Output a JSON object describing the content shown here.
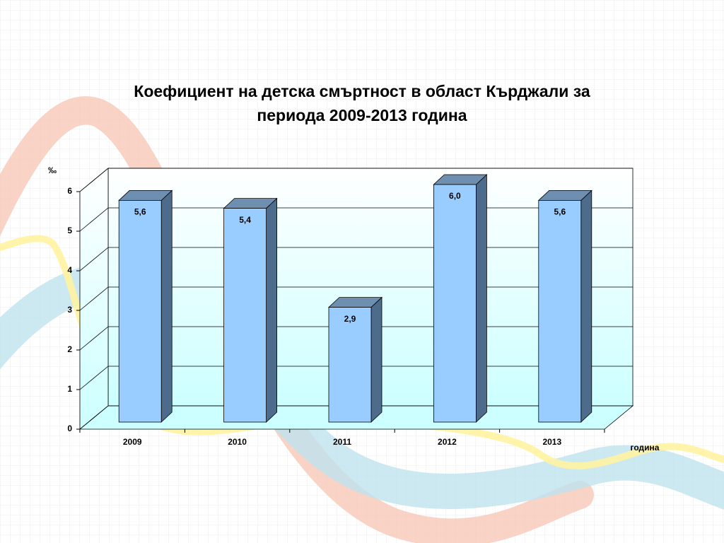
{
  "chart_data": {
    "type": "bar3d",
    "title": "Коефициент на детска смъртност в област Кърджали за периода 2009-2013 година",
    "y_label": "‰",
    "x_label": "година",
    "categories": [
      "2009",
      "2010",
      "2011",
      "2012",
      "2013"
    ],
    "values": [
      5.6,
      5.4,
      2.9,
      6.0,
      5.6
    ],
    "value_labels": [
      "5,6",
      "5,4",
      "2,9",
      "6,0",
      "5,6"
    ],
    "color": "#99ccff",
    "ylim": [
      0,
      6
    ],
    "yticks": [
      0,
      1,
      2,
      3,
      4,
      5,
      6
    ],
    "grid": true
  }
}
